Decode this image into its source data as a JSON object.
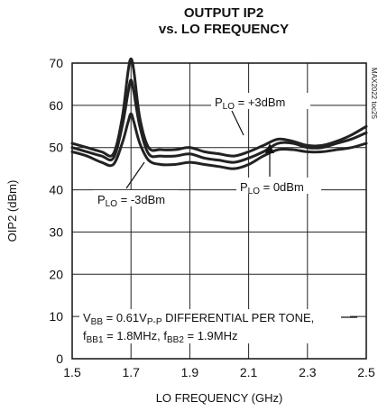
{
  "chart_data": {
    "type": "line",
    "title": "OUTPUT IP2",
    "subtitle": "vs. LO FREQUENCY",
    "xlabel": "LO FREQUENCY (GHz)",
    "ylabel": "OIP2 (dBm)",
    "xlim": [
      1.5,
      2.5
    ],
    "ylim": [
      0,
      70
    ],
    "xticks": [
      "1.5",
      "1.7",
      "1.9",
      "2.1",
      "2.3",
      "2.5"
    ],
    "yticks": [
      "0",
      "10",
      "20",
      "30",
      "40",
      "50",
      "60",
      "70"
    ],
    "grid": true,
    "figure_id": "MAX2022 toc25",
    "series": [
      {
        "name": "PLO = +3dBm",
        "x": [
          1.5,
          1.55,
          1.6,
          1.64,
          1.67,
          1.69,
          1.7,
          1.71,
          1.73,
          1.76,
          1.8,
          1.85,
          1.9,
          1.95,
          2.0,
          2.05,
          2.1,
          2.15,
          2.2,
          2.25,
          2.3,
          2.35,
          2.4,
          2.45,
          2.5
        ],
        "y": [
          51,
          50,
          49,
          48.5,
          57,
          68,
          71,
          68,
          57,
          50,
          49.5,
          49.5,
          50,
          49,
          48.5,
          48,
          49,
          50.5,
          52,
          51.5,
          50.5,
          50.5,
          51.5,
          53,
          55
        ]
      },
      {
        "name": "PLO = 0dBm",
        "x": [
          1.5,
          1.55,
          1.6,
          1.64,
          1.67,
          1.69,
          1.7,
          1.71,
          1.73,
          1.76,
          1.8,
          1.85,
          1.9,
          1.95,
          2.0,
          2.05,
          2.1,
          2.15,
          2.2,
          2.25,
          2.3,
          2.35,
          2.4,
          2.45,
          2.5
        ],
        "y": [
          50,
          49,
          48,
          47.5,
          55,
          63,
          66,
          63,
          55,
          48.5,
          48,
          48,
          48.5,
          47.5,
          47,
          46.5,
          47.5,
          49,
          51,
          51,
          50,
          50,
          51,
          52,
          53.5
        ]
      },
      {
        "name": "PLO = -3dBm",
        "x": [
          1.5,
          1.55,
          1.6,
          1.64,
          1.67,
          1.69,
          1.7,
          1.71,
          1.73,
          1.76,
          1.8,
          1.85,
          1.9,
          1.95,
          2.0,
          2.05,
          2.1,
          2.15,
          2.2,
          2.25,
          2.3,
          2.35,
          2.4,
          2.45,
          2.5
        ],
        "y": [
          49,
          48,
          46.5,
          46,
          51,
          56,
          58,
          56,
          51,
          47,
          46,
          46,
          46.5,
          46,
          45.5,
          45,
          46,
          48,
          49.5,
          49.5,
          49,
          49,
          49.5,
          50,
          51
        ]
      }
    ],
    "annotations": {
      "plo_plus3": {
        "main": "P",
        "sub": "LO",
        "rest": " = +3dBm"
      },
      "plo_0": {
        "main": "P",
        "sub": "LO",
        "rest": " = 0dBm"
      },
      "plo_minus3": {
        "main": "P",
        "sub": "LO",
        "rest": " = -3dBm"
      },
      "cond_line1": {
        "a": "V",
        "a_sub": "BB",
        "b": " = 0.61V",
        "b_sub": "P-P",
        "c": " DIFFERENTIAL PER TONE,"
      },
      "cond_line2": {
        "a": "f",
        "a_sub": "BB1",
        "b": " = 1.8MHz, f",
        "b_sub": "BB2",
        "c": " = 1.9MHz"
      }
    }
  }
}
